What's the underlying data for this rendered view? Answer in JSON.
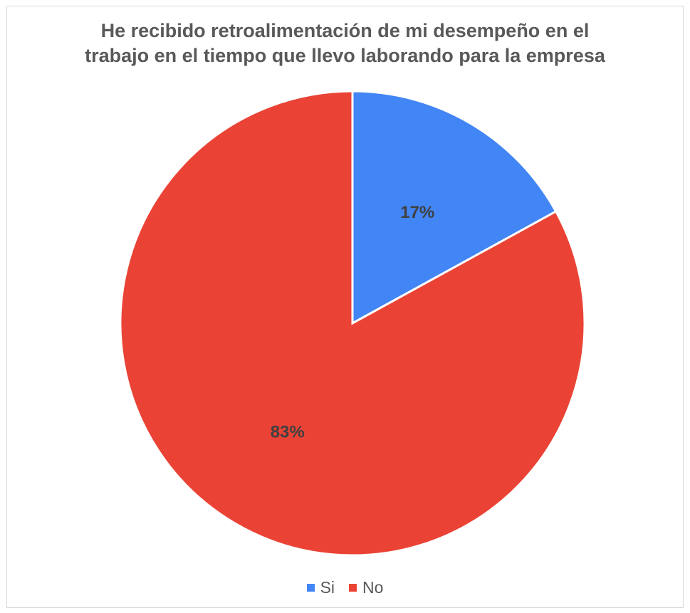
{
  "chart_data": {
    "type": "pie",
    "title": "He recibido retroalimentación de mi desempeño en el trabajo en el tiempo que llevo laborando  para la empresa",
    "title_lines": [
      "He recibido retroalimentación de mi desempeño en el",
      "trabajo en el tiempo que llevo laborando  para la empresa"
    ],
    "categories": [
      "Si",
      "No"
    ],
    "values": [
      17,
      83
    ],
    "data_labels": [
      "17%",
      "83%"
    ],
    "colors": [
      "#4285f4",
      "#ea4335"
    ],
    "legend_position": "bottom",
    "start_angle": "top",
    "direction": "clockwise"
  }
}
